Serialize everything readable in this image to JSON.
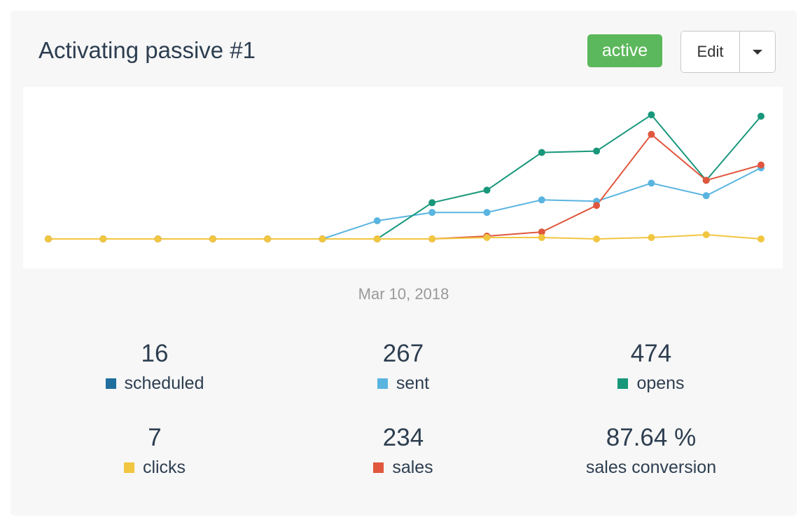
{
  "campaign": {
    "title": "Activating passive #1",
    "status": "active",
    "edit_label": "Edit"
  },
  "colors": {
    "scheduled": "#1f6e9e",
    "sent": "#5ab4e0",
    "opens": "#18977a",
    "clicks": "#f1c640",
    "sales": "#e0573e",
    "status_active": "#5cb85c"
  },
  "icons": {
    "dropdown": "caret-down-icon"
  },
  "chart_data": {
    "type": "line",
    "x_label_shown": "Mar 10, 2018",
    "grid": false,
    "legend": "below",
    "ylim": [
      0,
      100
    ],
    "x": [
      1,
      2,
      3,
      4,
      5,
      6,
      7,
      8,
      9,
      10,
      11,
      12,
      13,
      14
    ],
    "series": [
      {
        "name": "sent",
        "color": "#5ab4e0",
        "values": [
          0,
          0,
          0,
          0,
          0,
          0,
          13,
          19,
          19,
          28,
          27,
          40,
          31,
          51
        ]
      },
      {
        "name": "opens",
        "color": "#18977a",
        "values": [
          0,
          0,
          0,
          0,
          0,
          0,
          0,
          26,
          35,
          62,
          63,
          89,
          42,
          88
        ]
      },
      {
        "name": "sales",
        "color": "#e0573e",
        "values": [
          0,
          0,
          0,
          0,
          0,
          0,
          0,
          0,
          2,
          5,
          24,
          75,
          42,
          53
        ]
      },
      {
        "name": "clicks",
        "color": "#f1c640",
        "values": [
          0,
          0,
          0,
          0,
          0,
          0,
          0,
          0,
          1,
          1,
          0,
          1,
          3,
          0
        ]
      }
    ]
  },
  "stats": {
    "scheduled": {
      "value": "16",
      "label": "scheduled"
    },
    "sent": {
      "value": "267",
      "label": "sent"
    },
    "opens": {
      "value": "474",
      "label": "opens"
    },
    "clicks": {
      "value": "7",
      "label": "clicks"
    },
    "sales": {
      "value": "234",
      "label": "sales"
    },
    "conversion": {
      "value": "87.64 %",
      "label": "sales conversion"
    }
  }
}
